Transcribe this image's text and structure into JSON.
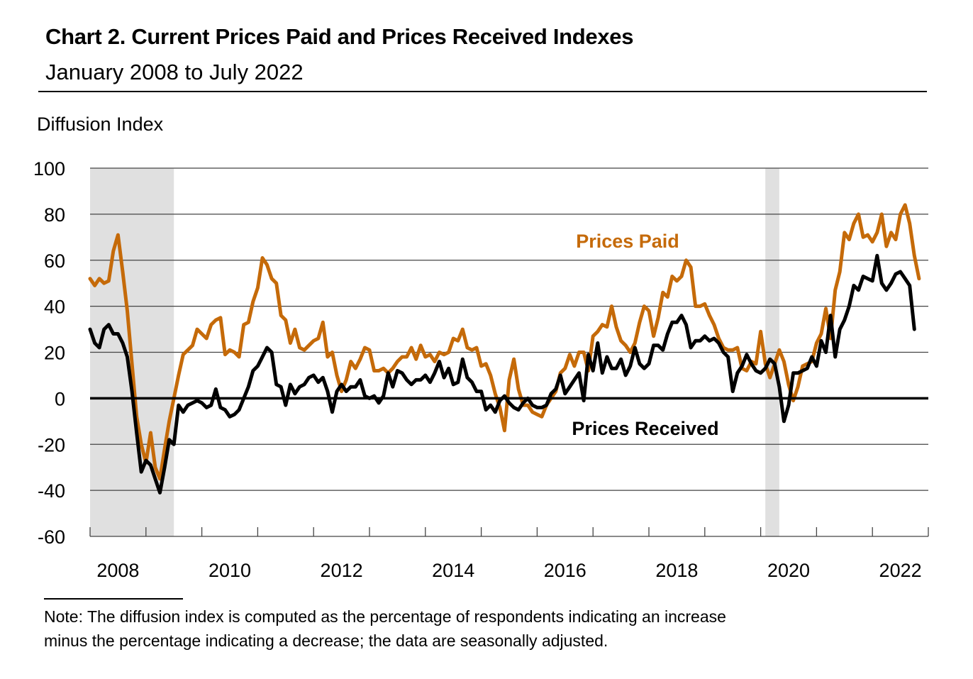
{
  "header": {
    "title": "Chart 2. Current Prices Paid and Prices Received Indexes",
    "subtitle": "January 2008 to July 2022"
  },
  "note": {
    "line1": "Note: The diffusion index is computed as the percentage of respondents indicating an increase",
    "line2": "minus the percentage indicating a decrease; the data are seasonally adjusted."
  },
  "chart_data": {
    "type": "line",
    "title": "Chart 2. Current Prices Paid and Prices Received Indexes",
    "subtitle": "January 2008 to July 2022",
    "xlabel": "",
    "ylabel": "Diffusion Index",
    "ylim": [
      -60,
      100
    ],
    "yticks": [
      100,
      80,
      60,
      40,
      20,
      0,
      -20,
      -40,
      -60
    ],
    "xlim": [
      "2008-01",
      "2022-12"
    ],
    "xtick_labels": [
      "2008",
      "2010",
      "2012",
      "2014",
      "2016",
      "2018",
      "2020",
      "2022"
    ],
    "x_start": "2008-01",
    "frequency": "monthly",
    "grid": "horizontal",
    "recessions": [
      {
        "start": "2008-01",
        "end": "2009-06"
      },
      {
        "start": "2020-02",
        "end": "2020-04"
      }
    ],
    "colors": {
      "prices_paid": "#C56A09",
      "prices_received": "#000000",
      "recession": "#E0E0E0"
    },
    "series": [
      {
        "name": "Prices Paid",
        "label_anchor": "2018-01",
        "values": [
          52,
          49,
          52,
          50,
          51,
          64,
          71,
          55,
          38,
          15,
          -8,
          -20,
          -28,
          -15,
          -30,
          -35,
          -22,
          -10,
          0,
          10,
          19,
          21,
          23,
          30,
          28,
          26,
          32,
          34,
          35,
          19,
          21,
          20,
          18,
          32,
          33,
          42,
          48,
          61,
          58,
          52,
          50,
          36,
          34,
          24,
          30,
          22,
          21,
          23,
          25,
          26,
          33,
          18,
          20,
          10,
          3,
          8,
          16,
          13,
          17,
          22,
          21,
          12,
          12,
          13,
          11,
          13,
          16,
          18,
          18,
          22,
          17,
          23,
          18,
          19,
          16,
          20,
          19,
          20,
          26,
          25,
          30,
          22,
          21,
          22,
          14,
          15,
          10,
          2,
          -4,
          -14,
          8,
          17,
          4,
          -3,
          -3,
          -6,
          -7,
          -8,
          -3,
          0,
          3,
          11,
          13,
          19,
          14,
          20,
          20,
          12,
          27,
          29,
          32,
          31,
          40,
          31,
          25,
          23,
          20,
          24,
          33,
          40,
          38,
          27,
          35,
          46,
          44,
          53,
          51,
          53,
          60,
          57,
          40,
          40,
          41,
          36,
          32,
          26,
          22,
          21,
          21,
          22,
          13,
          12,
          16,
          15,
          29,
          15,
          9,
          15,
          21,
          16,
          6,
          -1,
          5,
          14,
          15,
          16,
          24,
          28,
          39,
          26,
          47,
          55,
          72,
          69,
          76,
          80,
          70,
          71,
          68,
          72,
          80,
          66,
          72,
          69,
          80,
          84,
          76,
          62,
          52
        ]
      },
      {
        "name": "Prices Received",
        "label_anchor": "2016-03",
        "values": [
          30,
          24,
          22,
          30,
          32,
          28,
          28,
          24,
          18,
          3,
          -15,
          -32,
          -27,
          -29,
          -35,
          -41,
          -30,
          -18,
          -20,
          -3,
          -6,
          -3,
          -2,
          -1,
          -2,
          -4,
          -3,
          4,
          -4,
          -5,
          -8,
          -7,
          -5,
          0,
          5,
          12,
          14,
          18,
          22,
          20,
          6,
          5,
          -3,
          6,
          2,
          5,
          6,
          9,
          10,
          7,
          9,
          3,
          -6,
          3,
          6,
          3,
          5,
          5,
          8,
          1,
          0,
          1,
          -2,
          1,
          11,
          5,
          12,
          11,
          8,
          6,
          8,
          8,
          10,
          7,
          11,
          16,
          9,
          13,
          6,
          7,
          17,
          9,
          7,
          3,
          3,
          -5,
          -3,
          -6,
          -1,
          1,
          -2,
          -4,
          -5,
          -2,
          0,
          -3,
          -4,
          -4,
          -3,
          2,
          4,
          10,
          2,
          5,
          8,
          11,
          -1,
          19,
          12,
          24,
          11,
          18,
          13,
          13,
          17,
          10,
          14,
          22,
          15,
          13,
          15,
          23,
          23,
          21,
          28,
          33,
          33,
          36,
          32,
          22,
          25,
          25,
          27,
          25,
          26,
          24,
          20,
          18,
          3,
          11,
          14,
          19,
          15,
          12,
          11,
          13,
          17,
          15,
          5,
          -10,
          -3,
          11,
          11,
          12,
          13,
          18,
          14,
          25,
          20,
          36,
          18,
          30,
          34,
          40,
          49,
          47,
          53,
          52,
          51,
          62,
          50,
          47,
          50,
          54,
          55,
          52,
          49,
          30
        ]
      }
    ],
    "annotations": [
      {
        "text": "Prices Paid",
        "color": "#C56A09",
        "near": "2018 series peak"
      },
      {
        "text": "Prices Received",
        "color": "#000000",
        "near": "2017 below zero line"
      }
    ]
  }
}
